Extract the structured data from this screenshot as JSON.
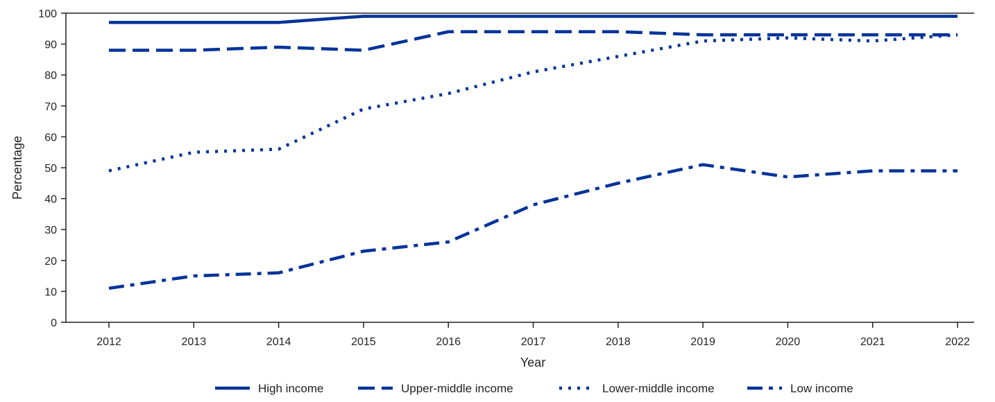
{
  "chart_data": {
    "type": "line",
    "title": "",
    "xlabel": "Year",
    "ylabel": "Percentage",
    "x": [
      2012,
      2013,
      2014,
      2015,
      2016,
      2017,
      2018,
      2019,
      2020,
      2021,
      2022
    ],
    "ylim": [
      0,
      100
    ],
    "yticks": [
      0,
      10,
      20,
      30,
      40,
      50,
      60,
      70,
      80,
      90,
      100
    ],
    "grid": false,
    "legend_position": "bottom",
    "line_color": "#003399",
    "series": [
      {
        "name": "High income",
        "style": "solid",
        "values": [
          97,
          97,
          97,
          99,
          99,
          99,
          99,
          99,
          99,
          99,
          99
        ]
      },
      {
        "name": "Upper-middle income",
        "style": "dashed",
        "values": [
          88,
          88,
          89,
          88,
          94,
          94,
          94,
          93,
          93,
          93,
          93
        ]
      },
      {
        "name": "Lower-middle income",
        "style": "dotted",
        "values": [
          49,
          55,
          56,
          69,
          74,
          81,
          86,
          91,
          92,
          91,
          93
        ]
      },
      {
        "name": "Low income",
        "style": "dashdot",
        "values": [
          11,
          15,
          16,
          23,
          26,
          38,
          45,
          51,
          47,
          49,
          49
        ]
      }
    ]
  }
}
